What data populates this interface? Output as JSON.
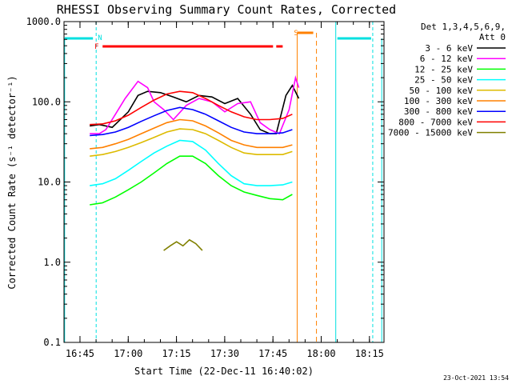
{
  "chart_data": {
    "type": "line",
    "title": "RHESSI Observing Summary Count Rates, Corrected",
    "xlabel": "Start Time (22-Dec-11 16:40:02)",
    "ylabel": "Corrected Count Rate (s⁻¹ detector⁻¹)",
    "yscale": "log",
    "ylim": [
      0.1,
      1000
    ],
    "xlim_min": [
      0,
      99.5
    ],
    "x_ticks": [
      {
        "min": 4.97,
        "label": "16:45"
      },
      {
        "min": 19.97,
        "label": "17:00"
      },
      {
        "min": 34.97,
        "label": "17:15"
      },
      {
        "min": 49.97,
        "label": "17:30"
      },
      {
        "min": 64.97,
        "label": "17:45"
      },
      {
        "min": 79.97,
        "label": "18:00"
      },
      {
        "min": 94.97,
        "label": "18:15"
      }
    ],
    "y_ticks": [
      {
        "value": 1000,
        "label": "1000.0"
      },
      {
        "value": 100,
        "label": "100.0"
      },
      {
        "value": 10,
        "label": "10.0"
      },
      {
        "value": 1,
        "label": "1.0"
      },
      {
        "value": 0.1,
        "label": "0.1"
      }
    ],
    "legend_position": "right",
    "legend_header": [
      "Det 1,3,4,5,6,9,",
      "Att 0"
    ],
    "series": [
      {
        "name": "3 - 6 keV",
        "color": "#000000",
        "x": [
          8,
          11,
          15,
          20,
          23,
          26,
          30,
          34,
          38,
          42,
          46,
          50,
          54,
          58,
          61,
          64,
          66,
          69,
          71,
          73
        ],
        "y": [
          50,
          52,
          48,
          75,
          120,
          135,
          130,
          115,
          100,
          120,
          115,
          95,
          110,
          70,
          45,
          40,
          40,
          120,
          160,
          110
        ]
      },
      {
        "name": "6 - 12 keV",
        "color": "#ff00ff",
        "x": [
          8,
          11,
          13,
          16,
          19,
          23,
          26,
          28,
          31,
          34,
          38,
          42,
          46,
          50,
          54,
          58,
          61,
          64,
          67,
          70,
          72,
          73
        ],
        "y": [
          40,
          40,
          45,
          70,
          110,
          180,
          150,
          100,
          80,
          60,
          90,
          110,
          100,
          75,
          95,
          100,
          55,
          45,
          40,
          80,
          200,
          150
        ]
      },
      {
        "name": "12 - 25 keV",
        "color": "#00ff00",
        "x": [
          8,
          12,
          16,
          20,
          24,
          28,
          32,
          36,
          40,
          44,
          48,
          52,
          56,
          60,
          64,
          68,
          71
        ],
        "y": [
          5.2,
          5.5,
          6.5,
          8,
          10,
          13,
          17,
          21,
          21,
          17,
          12,
          9,
          7.5,
          6.8,
          6.2,
          6.0,
          7
        ]
      },
      {
        "name": "25 - 50 keV",
        "color": "#00ffff",
        "x": [
          8,
          12,
          16,
          20,
          24,
          28,
          32,
          36,
          40,
          44,
          48,
          52,
          56,
          60,
          64,
          68,
          71
        ],
        "y": [
          9,
          9.5,
          11,
          14,
          18,
          23,
          28,
          33,
          32,
          25,
          17,
          12,
          9.5,
          9,
          9,
          9.2,
          10
        ]
      },
      {
        "name": "50 - 100 keV",
        "color": "#ddbb00",
        "x": [
          8,
          12,
          16,
          20,
          24,
          28,
          32,
          36,
          40,
          44,
          48,
          52,
          56,
          60,
          64,
          68,
          71
        ],
        "y": [
          21,
          22,
          24,
          27,
          31,
          36,
          42,
          46,
          45,
          40,
          33,
          27,
          23,
          22,
          22,
          22,
          24
        ]
      },
      {
        "name": "100 - 300 keV",
        "color": "#ff8000",
        "x": [
          8,
          12,
          16,
          20,
          24,
          28,
          32,
          36,
          40,
          44,
          48,
          52,
          56,
          60,
          64,
          68,
          71
        ],
        "y": [
          26,
          27,
          30,
          34,
          40,
          47,
          55,
          60,
          58,
          50,
          41,
          33,
          29,
          27,
          27,
          27,
          29
        ]
      },
      {
        "name": "300 - 800 keV",
        "color": "#0000ff",
        "x": [
          8,
          12,
          16,
          20,
          24,
          28,
          32,
          36,
          40,
          44,
          48,
          52,
          56,
          60,
          64,
          68,
          71
        ],
        "y": [
          38,
          39,
          42,
          48,
          57,
          67,
          78,
          85,
          80,
          70,
          58,
          48,
          42,
          40,
          40,
          41,
          45
        ]
      },
      {
        "name": "800 - 7000 keV",
        "color": "#ff0000",
        "x": [
          8,
          12,
          16,
          20,
          24,
          28,
          32,
          36,
          40,
          44,
          48,
          52,
          56,
          60,
          64,
          68,
          71
        ],
        "y": [
          52,
          53,
          58,
          68,
          85,
          105,
          125,
          135,
          130,
          110,
          90,
          75,
          65,
          60,
          60,
          62,
          70
        ]
      },
      {
        "name": "7000 - 15000 keV",
        "color": "#808000",
        "x": [
          31,
          33,
          35,
          37,
          39,
          41,
          43
        ],
        "y": [
          1.4,
          1.6,
          1.8,
          1.6,
          1.9,
          1.7,
          1.4
        ]
      }
    ],
    "annotations": [
      {
        "label": "N",
        "x": 10
      },
      {
        "label": "F",
        "x": 9
      },
      {
        "label": "S",
        "x": 71
      }
    ],
    "timestamp": "23-Oct-2021 13:54"
  }
}
